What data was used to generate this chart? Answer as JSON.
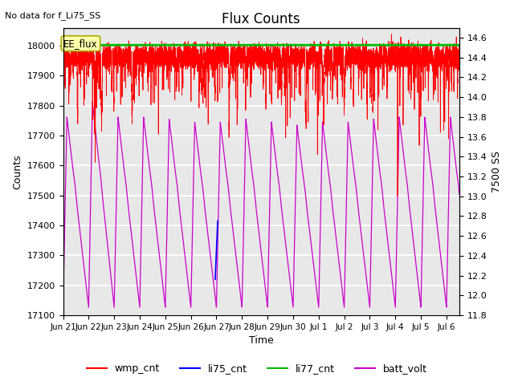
{
  "title": "Flux Counts",
  "top_left_text": "No data for f_Li75_SS",
  "xlabel": "Time",
  "ylabel_left": "Counts",
  "ylabel_right": "7500 SS",
  "annotation_text": "EE_flux",
  "ylim_left": [
    17100,
    18060
  ],
  "ylim_right": [
    11.8,
    14.7
  ],
  "x_tick_labels": [
    "Jun 21",
    "Jun 22",
    "Jun 23",
    "Jun 24",
    "Jun 25",
    "Jun 26",
    "Jun 27",
    "Jun 28",
    "Jun 29",
    "Jun 30",
    "Jul 1",
    "Jul 2",
    "Jul 3",
    "Jul 4",
    "Jul 5",
    "Jul 6"
  ],
  "x_tick_positions": [
    0,
    1,
    2,
    3,
    4,
    5,
    6,
    7,
    8,
    9,
    10,
    11,
    12,
    13,
    14,
    15
  ],
  "wmp_color": "#ff0000",
  "li75_color": "#0000ff",
  "li77_color": "#00bb00",
  "batt_color": "#cc00cc",
  "annotation_box_color": "#ffffaa",
  "annotation_box_edge": "#aaaa00",
  "background_color": "#e8e8e8",
  "grid_color": "#ffffff",
  "wmp_base": 17960,
  "li77_value": 18002,
  "xlim": [
    0,
    15.5
  ],
  "figsize": [
    6.4,
    4.8
  ],
  "dpi": 100
}
